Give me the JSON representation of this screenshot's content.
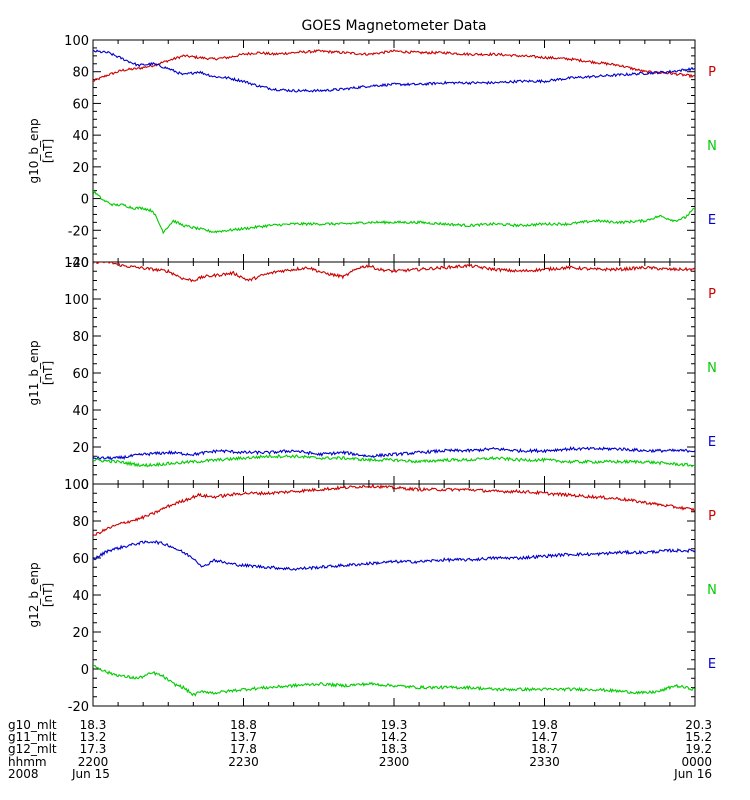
{
  "chart_data": {
    "title": "GOES Magnetometer Data",
    "type": "line",
    "x": {
      "range_minutes": [
        0,
        120
      ],
      "major_ticks_minutes": [
        0,
        30,
        60,
        90,
        120
      ],
      "rows": [
        {
          "label": "g10_mlt",
          "values": [
            "18.3",
            "18.8",
            "19.3",
            "19.8",
            "20.3"
          ]
        },
        {
          "label": "g11_mlt",
          "values": [
            "13.2",
            "13.7",
            "14.2",
            "14.7",
            "15.2"
          ]
        },
        {
          "label": "g12_mlt",
          "values": [
            "17.3",
            "17.8",
            "18.3",
            "18.7",
            "19.2"
          ]
        },
        {
          "label": "hhmm",
          "values": [
            "2200",
            "2230",
            "2300",
            "2330",
            "0000"
          ]
        },
        {
          "label": "2008",
          "values": [
            "Jun 15",
            "",
            "",
            "",
            "Jun 16"
          ]
        }
      ]
    },
    "panels": [
      {
        "ylabel": "g10_b_enp",
        "unit": "[nT]",
        "ylim": [
          -40,
          100
        ],
        "yticks": [
          -40,
          -20,
          0,
          20,
          40,
          60,
          80,
          100
        ],
        "side_labels": [
          {
            "text": "P",
            "color": "#cc0000"
          },
          {
            "text": "N",
            "color": "#00cc00"
          },
          {
            "text": "E",
            "color": "#0000cc"
          }
        ],
        "series": [
          {
            "color": "#cc0000",
            "x": [
              0,
              3,
              6,
              9,
              12,
              15,
              18,
              21,
              24,
              27,
              30,
              33,
              36,
              40,
              45,
              50,
              55,
              60,
              65,
              70,
              75,
              80,
              85,
              90,
              95,
              100,
              105,
              110,
              115,
              120
            ],
            "y": [
              74,
              78,
              81,
              82,
              84,
              87,
              90,
              89,
              88,
              89,
              91,
              92,
              91,
              92,
              93,
              92,
              91,
              93,
              92,
              92,
              91,
              91,
              90,
              89,
              88,
              86,
              84,
              80,
              79,
              77
            ]
          },
          {
            "color": "#0000cc",
            "x": [
              0,
              3,
              6,
              9,
              12,
              15,
              18,
              21,
              24,
              27,
              30,
              33,
              36,
              40,
              45,
              50,
              55,
              60,
              65,
              70,
              75,
              80,
              85,
              90,
              95,
              100,
              105,
              110,
              115,
              120
            ],
            "y": [
              93,
              92,
              88,
              84,
              85,
              82,
              78,
              80,
              77,
              76,
              74,
              71,
              69,
              68,
              68,
              69,
              71,
              72,
              72,
              73,
              73,
              73,
              74,
              74,
              76,
              77,
              78,
              79,
              80,
              82
            ]
          },
          {
            "color": "#00cc00",
            "x": [
              0,
              2,
              4,
              6,
              8,
              10,
              12,
              14,
              16,
              18,
              21,
              24,
              27,
              30,
              35,
              40,
              45,
              50,
              55,
              60,
              65,
              70,
              75,
              80,
              85,
              90,
              95,
              100,
              105,
              110,
              113,
              116,
              118,
              120
            ],
            "y": [
              5,
              -1,
              -4,
              -4,
              -6,
              -6,
              -8,
              -21,
              -14,
              -17,
              -19,
              -21,
              -20,
              -19,
              -17,
              -16,
              -16,
              -16,
              -15,
              -15,
              -15,
              -16,
              -17,
              -16,
              -17,
              -16,
              -16,
              -14,
              -15,
              -14,
              -11,
              -14,
              -12,
              -6
            ]
          }
        ]
      },
      {
        "ylabel": "g11_b_enp",
        "unit": "[nT]",
        "ylim": [
          0,
          120
        ],
        "yticks": [
          0,
          20,
          40,
          60,
          80,
          100,
          120
        ],
        "side_labels": [
          {
            "text": "P",
            "color": "#cc0000"
          },
          {
            "text": "N",
            "color": "#00cc00"
          },
          {
            "text": "E",
            "color": "#0000cc"
          }
        ],
        "series": [
          {
            "color": "#cc0000",
            "x": [
              0,
              3,
              6,
              9,
              12,
              15,
              18,
              20,
              22,
              25,
              28,
              31,
              34,
              37,
              40,
              43,
              46,
              50,
              53,
              55,
              57,
              60,
              65,
              70,
              75,
              80,
              85,
              90,
              95,
              100,
              105,
              110,
              115,
              120
            ],
            "y": [
              120,
              120,
              118,
              117,
              116,
              115,
              111,
              110,
              112,
              113,
              114,
              110,
              113,
              115,
              116,
              117,
              114,
              112,
              117,
              118,
              116,
              115,
              116,
              117,
              118,
              116,
              115,
              116,
              117,
              116,
              116,
              117,
              116,
              116
            ]
          },
          {
            "color": "#0000cc",
            "x": [
              0,
              5,
              10,
              15,
              20,
              25,
              30,
              35,
              40,
              45,
              50,
              55,
              60,
              65,
              70,
              75,
              80,
              85,
              90,
              95,
              100,
              105,
              110,
              115,
              120
            ],
            "y": [
              14,
              14,
              16,
              17,
              16,
              18,
              17,
              17,
              18,
              16,
              17,
              15,
              16,
              17,
              18,
              18,
              19,
              18,
              18,
              19,
              19,
              19,
              18,
              18,
              18
            ]
          },
          {
            "color": "#00cc00",
            "x": [
              0,
              5,
              10,
              15,
              20,
              25,
              30,
              35,
              40,
              45,
              50,
              55,
              60,
              65,
              70,
              75,
              80,
              85,
              90,
              95,
              100,
              105,
              110,
              115,
              120
            ],
            "y": [
              13,
              12,
              10,
              11,
              12,
              13,
              14,
              15,
              15,
              14,
              14,
              13,
              13,
              12,
              13,
              13,
              14,
              13,
              13,
              12,
              12,
              12,
              12,
              11,
              10
            ]
          }
        ]
      },
      {
        "ylabel": "g12_b_enp",
        "unit": "[nT]",
        "ylim": [
          -20,
          100
        ],
        "yticks": [
          -20,
          0,
          20,
          40,
          60,
          80,
          100
        ],
        "side_labels": [
          {
            "text": "P",
            "color": "#cc0000"
          },
          {
            "text": "N",
            "color": "#00cc00"
          },
          {
            "text": "E",
            "color": "#0000cc"
          }
        ],
        "series": [
          {
            "color": "#cc0000",
            "x": [
              0,
              3,
              6,
              9,
              12,
              15,
              18,
              21,
              24,
              27,
              30,
              35,
              40,
              45,
              50,
              55,
              60,
              65,
              70,
              75,
              80,
              85,
              90,
              95,
              100,
              105,
              110,
              115,
              120
            ],
            "y": [
              72,
              76,
              79,
              81,
              84,
              88,
              91,
              94,
              93,
              94,
              95,
              95,
              96,
              97,
              98,
              99,
              98,
              97,
              97,
              97,
              96,
              96,
              95,
              94,
              93,
              92,
              90,
              88,
              86
            ]
          },
          {
            "color": "#0000cc",
            "x": [
              0,
              3,
              6,
              9,
              12,
              15,
              18,
              20,
              22,
              24,
              27,
              30,
              35,
              40,
              45,
              50,
              55,
              60,
              65,
              70,
              75,
              80,
              85,
              90,
              95,
              100,
              105,
              110,
              115,
              120
            ],
            "y": [
              59,
              64,
              66,
              68,
              69,
              67,
              63,
              60,
              55,
              59,
              57,
              56,
              55,
              54,
              55,
              56,
              57,
              58,
              58,
              59,
              59,
              60,
              60,
              61,
              62,
              62,
              63,
              63,
              64,
              64
            ]
          },
          {
            "color": "#00cc00",
            "x": [
              0,
              3,
              6,
              9,
              12,
              14,
              16,
              18,
              20,
              22,
              24,
              27,
              30,
              35,
              40,
              45,
              50,
              55,
              60,
              65,
              70,
              75,
              80,
              85,
              90,
              95,
              100,
              105,
              110,
              113,
              116,
              120
            ],
            "y": [
              2,
              -2,
              -4,
              -5,
              -2,
              -4,
              -8,
              -10,
              -14,
              -12,
              -13,
              -12,
              -11,
              -10,
              -9,
              -8,
              -9,
              -8,
              -9,
              -10,
              -10,
              -10,
              -11,
              -11,
              -11,
              -11,
              -11,
              -12,
              -13,
              -12,
              -9,
              -11
            ]
          }
        ]
      }
    ]
  }
}
